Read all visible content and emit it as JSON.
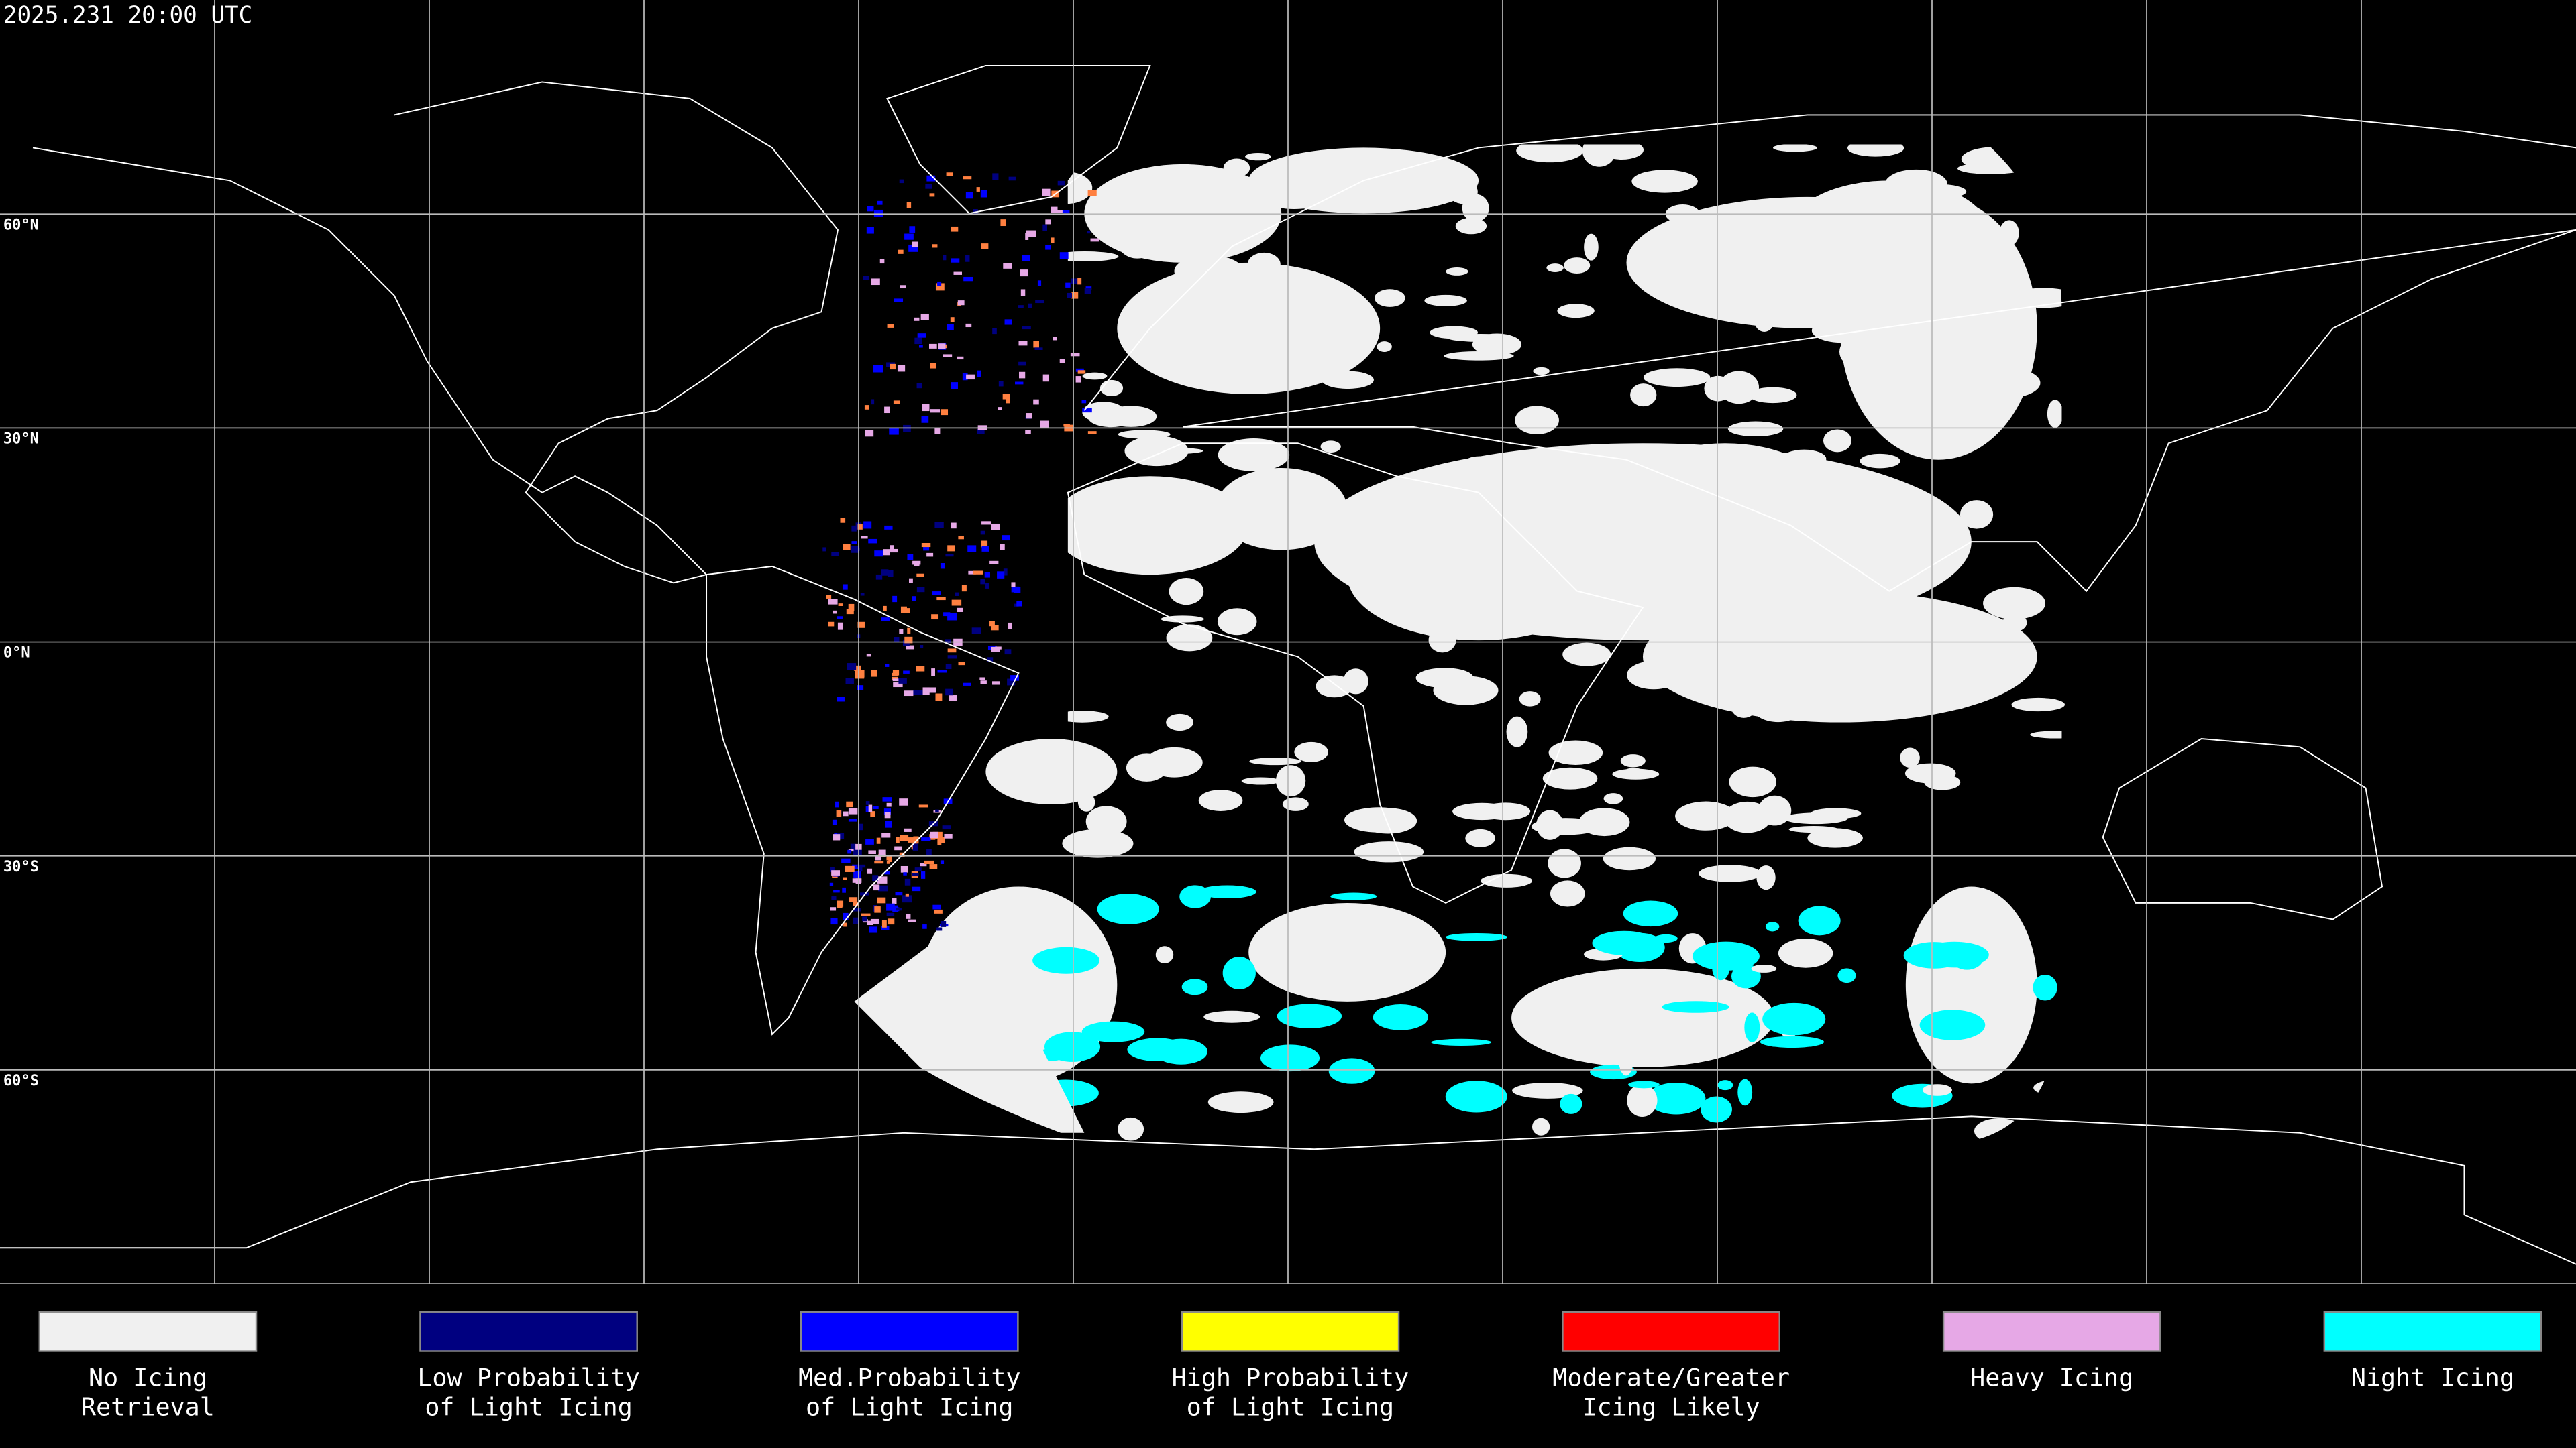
{
  "map": {
    "timestamp": "2025.231 20:00 UTC",
    "lat_ticks": [
      {
        "value": 60,
        "label": "60°N"
      },
      {
        "value": 30,
        "label": "30°N"
      },
      {
        "value": 0,
        "label": "0°N"
      },
      {
        "value": -30,
        "label": "30°S"
      },
      {
        "value": -60,
        "label": "60°S"
      }
    ],
    "legend": [
      {
        "lines": [
          "No Icing",
          "Retrieval"
        ],
        "color": "#f0f0f0"
      },
      {
        "lines": [
          "Low Probability",
          "of Light Icing"
        ],
        "color": "#000080"
      },
      {
        "lines": [
          "Med.Probability",
          "of Light Icing"
        ],
        "color": "#0000ff"
      },
      {
        "lines": [
          "High Probability",
          "of Light Icing"
        ],
        "color": "#ffff00"
      },
      {
        "lines": [
          "Moderate/Greater",
          "Icing Likely"
        ],
        "color": "#ff0000"
      },
      {
        "lines": [
          "Heavy Icing"
        ],
        "color": "#e6a8e6"
      },
      {
        "lines": [
          "Night Icing"
        ],
        "color": "#00ffff"
      }
    ]
  }
}
